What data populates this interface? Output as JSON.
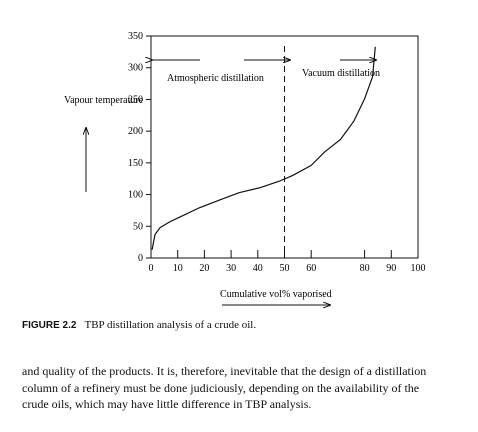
{
  "chart_data": {
    "type": "line",
    "y_label": "Vapour temperature",
    "x_label": "Cumulative vol% vaporised",
    "annotations": [
      "Atmospheric distillation",
      "Vacuum distillation"
    ],
    "divider_x": 50,
    "x": [
      0.4,
      1.5,
      3.4,
      7,
      11,
      18,
      26,
      33,
      41,
      48,
      53,
      60,
      65,
      71,
      76,
      80,
      83,
      84
    ],
    "series": [
      {
        "name": "TBP",
        "color": "#111111",
        "values": [
          13,
          37,
          48,
          57,
          65,
          79,
          92,
          103,
          111,
          121,
          130,
          146,
          167,
          187,
          216,
          251,
          286,
          333
        ]
      }
    ],
    "xlim": [
      0,
      100
    ],
    "xticks": [
      0,
      10,
      20,
      30,
      40,
      50,
      60,
      80,
      90,
      100
    ],
    "ylim": [
      0,
      350
    ],
    "yticks": [
      0,
      50,
      100,
      150,
      200,
      250,
      300,
      350
    ]
  },
  "caption": {
    "label": "FIGURE 2.2",
    "text": "TBP distillation analysis of a crude oil."
  },
  "body": {
    "lines": [
      "and quality of the products. It is, therefore, inevitable that the design of a distillation",
      "column of a refinery must be done judiciously, depending on the availability of the",
      "crude oils, which may have little difference in TBP analysis."
    ]
  }
}
